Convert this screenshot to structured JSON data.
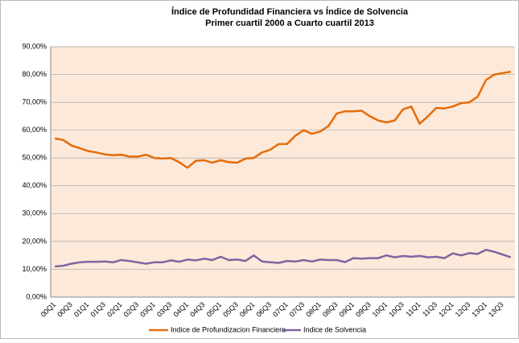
{
  "chart_data": {
    "type": "line",
    "title": "Índice de Profundidad Financiera vs Índice de Solvencia",
    "subtitle": "Primer cuartil 2000 a Cuarto cuartil 2013",
    "categories": [
      "00Q1",
      null,
      "00Q3",
      null,
      "01Q1",
      null,
      "01Q3",
      null,
      "02Q1",
      null,
      "02Q3",
      null,
      "03Q1",
      null,
      "03Q3",
      null,
      "04Q1",
      null,
      "04Q3",
      null,
      "05Q1",
      null,
      "05Q3",
      null,
      "06Q1",
      null,
      "06Q3",
      null,
      "07Q1",
      null,
      "07Q3",
      null,
      "08Q1",
      null,
      "08Q3",
      null,
      "09Q1",
      null,
      "09Q3",
      null,
      "10Q1",
      null,
      "10Q3",
      null,
      "11Q1",
      null,
      "11Q3",
      null,
      "12Q1",
      null,
      "12Q3",
      null,
      "13Q1",
      null,
      "13Q3",
      null
    ],
    "series": [
      {
        "name": "Indice de Profundizacion Financiera",
        "color": "#e46c0a",
        "values": [
          57,
          56.5,
          54.5,
          53.5,
          52.5,
          52,
          51.3,
          51,
          51.2,
          50.5,
          50.5,
          51.2,
          50,
          49.8,
          50,
          48.5,
          46.5,
          49,
          49.2,
          48.3,
          49.2,
          48.5,
          48.3,
          49.8,
          50,
          52,
          53,
          55,
          55,
          58,
          60,
          58.7,
          59.5,
          61.5,
          66,
          66.8,
          66.8,
          67,
          65,
          63.5,
          62.8,
          63.5,
          67.5,
          68.5,
          62.3,
          65,
          68,
          67.8,
          68.5,
          69.7,
          70,
          72,
          78,
          80,
          80.5,
          81
        ]
      },
      {
        "name": "Indice de Solvencia",
        "color": "#8064a2",
        "values": [
          11,
          11.3,
          12,
          12.5,
          12.7,
          12.7,
          12.8,
          12.5,
          13.3,
          13,
          12.5,
          12,
          12.5,
          12.5,
          13.2,
          12.7,
          13.5,
          13.2,
          13.8,
          13.3,
          14.5,
          13.3,
          13.5,
          13,
          15,
          12.8,
          12.5,
          12.3,
          13,
          12.8,
          13.3,
          12.8,
          13.5,
          13.3,
          13.3,
          12.6,
          14,
          13.8,
          14,
          14,
          15,
          14.3,
          14.8,
          14.5,
          14.8,
          14.3,
          14.5,
          14,
          15.7,
          15,
          15.8,
          15.5,
          17,
          16.3,
          15.3,
          14.3
        ]
      }
    ],
    "ylim": [
      0,
      90
    ],
    "yticks": [
      {
        "value": 0,
        "label": "0,00%"
      },
      {
        "value": 10,
        "label": "10,00%"
      },
      {
        "value": 20,
        "label": "20,00%"
      },
      {
        "value": 30,
        "label": "30,00%"
      },
      {
        "value": 40,
        "label": "40,00%"
      },
      {
        "value": 50,
        "label": "50,00%"
      },
      {
        "value": 60,
        "label": "60,00%"
      },
      {
        "value": 70,
        "label": "70,00%"
      },
      {
        "value": 80,
        "label": "80,00%"
      },
      {
        "value": 90,
        "label": "90,00%"
      }
    ],
    "grid": true,
    "legend": "bottom"
  }
}
